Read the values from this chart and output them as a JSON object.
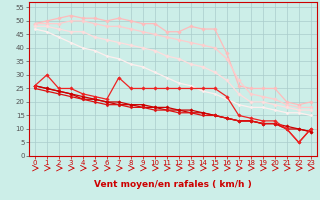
{
  "bg_color": "#cceee8",
  "grid_color": "#aadddd",
  "xlim": [
    -0.5,
    23.5
  ],
  "ylim": [
    0,
    57
  ],
  "yticks": [
    0,
    5,
    10,
    15,
    20,
    25,
    30,
    35,
    40,
    45,
    50,
    55
  ],
  "xticks": [
    0,
    1,
    2,
    3,
    4,
    5,
    6,
    7,
    8,
    9,
    10,
    11,
    12,
    13,
    14,
    15,
    16,
    17,
    18,
    19,
    20,
    21,
    22,
    23
  ],
  "lines": [
    {
      "x": [
        0,
        1,
        2,
        3,
        4,
        5,
        6,
        7,
        8,
        9,
        10,
        11,
        12,
        13,
        14,
        15,
        16,
        17,
        18,
        19,
        20,
        21,
        22,
        23
      ],
      "y": [
        49,
        50,
        51,
        52,
        51,
        51,
        50,
        51,
        50,
        49,
        49,
        46,
        46,
        48,
        47,
        47,
        38,
        26,
        25,
        25,
        25,
        20,
        19,
        20
      ],
      "color": "#ffbbbb",
      "lw": 0.9,
      "marker": "D",
      "ms": 1.8,
      "zorder": 2
    },
    {
      "x": [
        0,
        1,
        2,
        3,
        4,
        5,
        6,
        7,
        8,
        9,
        10,
        11,
        12,
        13,
        14,
        15,
        16,
        17,
        18,
        19,
        20,
        21,
        22,
        23
      ],
      "y": [
        49,
        49,
        49,
        50,
        50,
        49,
        48,
        48,
        47,
        46,
        45,
        44,
        43,
        42,
        41,
        40,
        36,
        28,
        23,
        22,
        21,
        19,
        18,
        18
      ],
      "color": "#ffcccc",
      "lw": 0.9,
      "marker": "D",
      "ms": 1.8,
      "zorder": 2
    },
    {
      "x": [
        0,
        1,
        2,
        3,
        4,
        5,
        6,
        7,
        8,
        9,
        10,
        11,
        12,
        13,
        14,
        15,
        16,
        17,
        18,
        19,
        20,
        21,
        22,
        23
      ],
      "y": [
        48,
        48,
        47,
        46,
        46,
        44,
        43,
        42,
        41,
        40,
        39,
        37,
        36,
        34,
        33,
        31,
        28,
        23,
        20,
        20,
        19,
        18,
        17,
        17
      ],
      "color": "#ffdddd",
      "lw": 0.9,
      "marker": "D",
      "ms": 1.8,
      "zorder": 2
    },
    {
      "x": [
        0,
        1,
        2,
        3,
        4,
        5,
        6,
        7,
        8,
        9,
        10,
        11,
        12,
        13,
        14,
        15,
        16,
        17,
        18,
        19,
        20,
        21,
        22,
        23
      ],
      "y": [
        47,
        46,
        44,
        42,
        40,
        39,
        37,
        36,
        34,
        33,
        31,
        29,
        27,
        26,
        24,
        23,
        21,
        19,
        18,
        18,
        17,
        16,
        16,
        15
      ],
      "color": "#ffeeee",
      "lw": 0.9,
      "marker": "D",
      "ms": 1.5,
      "zorder": 2
    },
    {
      "x": [
        0,
        1,
        2,
        3,
        4,
        5,
        6,
        7,
        8,
        9,
        10,
        11,
        12,
        13,
        14,
        15,
        16,
        17,
        18,
        19,
        20,
        21,
        22,
        23
      ],
      "y": [
        26,
        30,
        25,
        25,
        23,
        22,
        21,
        29,
        25,
        25,
        25,
        25,
        25,
        25,
        25,
        25,
        22,
        15,
        14,
        13,
        13,
        10,
        5,
        10
      ],
      "color": "#ee2222",
      "lw": 0.9,
      "marker": "D",
      "ms": 1.8,
      "zorder": 5
    },
    {
      "x": [
        0,
        1,
        2,
        3,
        4,
        5,
        6,
        7,
        8,
        9,
        10,
        11,
        12,
        13,
        14,
        15,
        16,
        17,
        18,
        19,
        20,
        21,
        22,
        23
      ],
      "y": [
        26,
        25,
        24,
        23,
        22,
        21,
        20,
        20,
        19,
        19,
        18,
        18,
        17,
        17,
        16,
        15,
        14,
        13,
        13,
        12,
        12,
        11,
        10,
        9
      ],
      "color": "#cc0000",
      "lw": 0.9,
      "marker": "D",
      "ms": 1.8,
      "zorder": 4
    },
    {
      "x": [
        0,
        1,
        2,
        3,
        4,
        5,
        6,
        7,
        8,
        9,
        10,
        11,
        12,
        13,
        14,
        15,
        16,
        17,
        18,
        19,
        20,
        21,
        22,
        23
      ],
      "y": [
        26,
        25,
        24,
        23,
        21,
        21,
        20,
        19,
        19,
        18,
        18,
        17,
        17,
        16,
        16,
        15,
        14,
        13,
        13,
        12,
        12,
        10,
        10,
        9
      ],
      "color": "#cc0000",
      "lw": 0.9,
      "marker": "D",
      "ms": 1.5,
      "zorder": 4
    },
    {
      "x": [
        0,
        1,
        2,
        3,
        4,
        5,
        6,
        7,
        8,
        9,
        10,
        11,
        12,
        13,
        14,
        15,
        16,
        17,
        18,
        19,
        20,
        21,
        22,
        23
      ],
      "y": [
        25,
        24,
        23,
        22,
        21,
        20,
        19,
        19,
        18,
        18,
        17,
        17,
        16,
        16,
        15,
        15,
        14,
        13,
        13,
        12,
        12,
        10,
        5,
        10
      ],
      "color": "#dd1111",
      "lw": 0.9,
      "marker": "D",
      "ms": 1.5,
      "zorder": 4
    }
  ],
  "xlabel": "Vent moyen/en rafales ( km/h )",
  "xlabel_color": "#cc0000",
  "xlabel_fontsize": 6.5,
  "tick_fontsize": 5,
  "ytick_color": "#555555",
  "xtick_color": "#cc0000",
  "arrow_color": "#cc0000"
}
